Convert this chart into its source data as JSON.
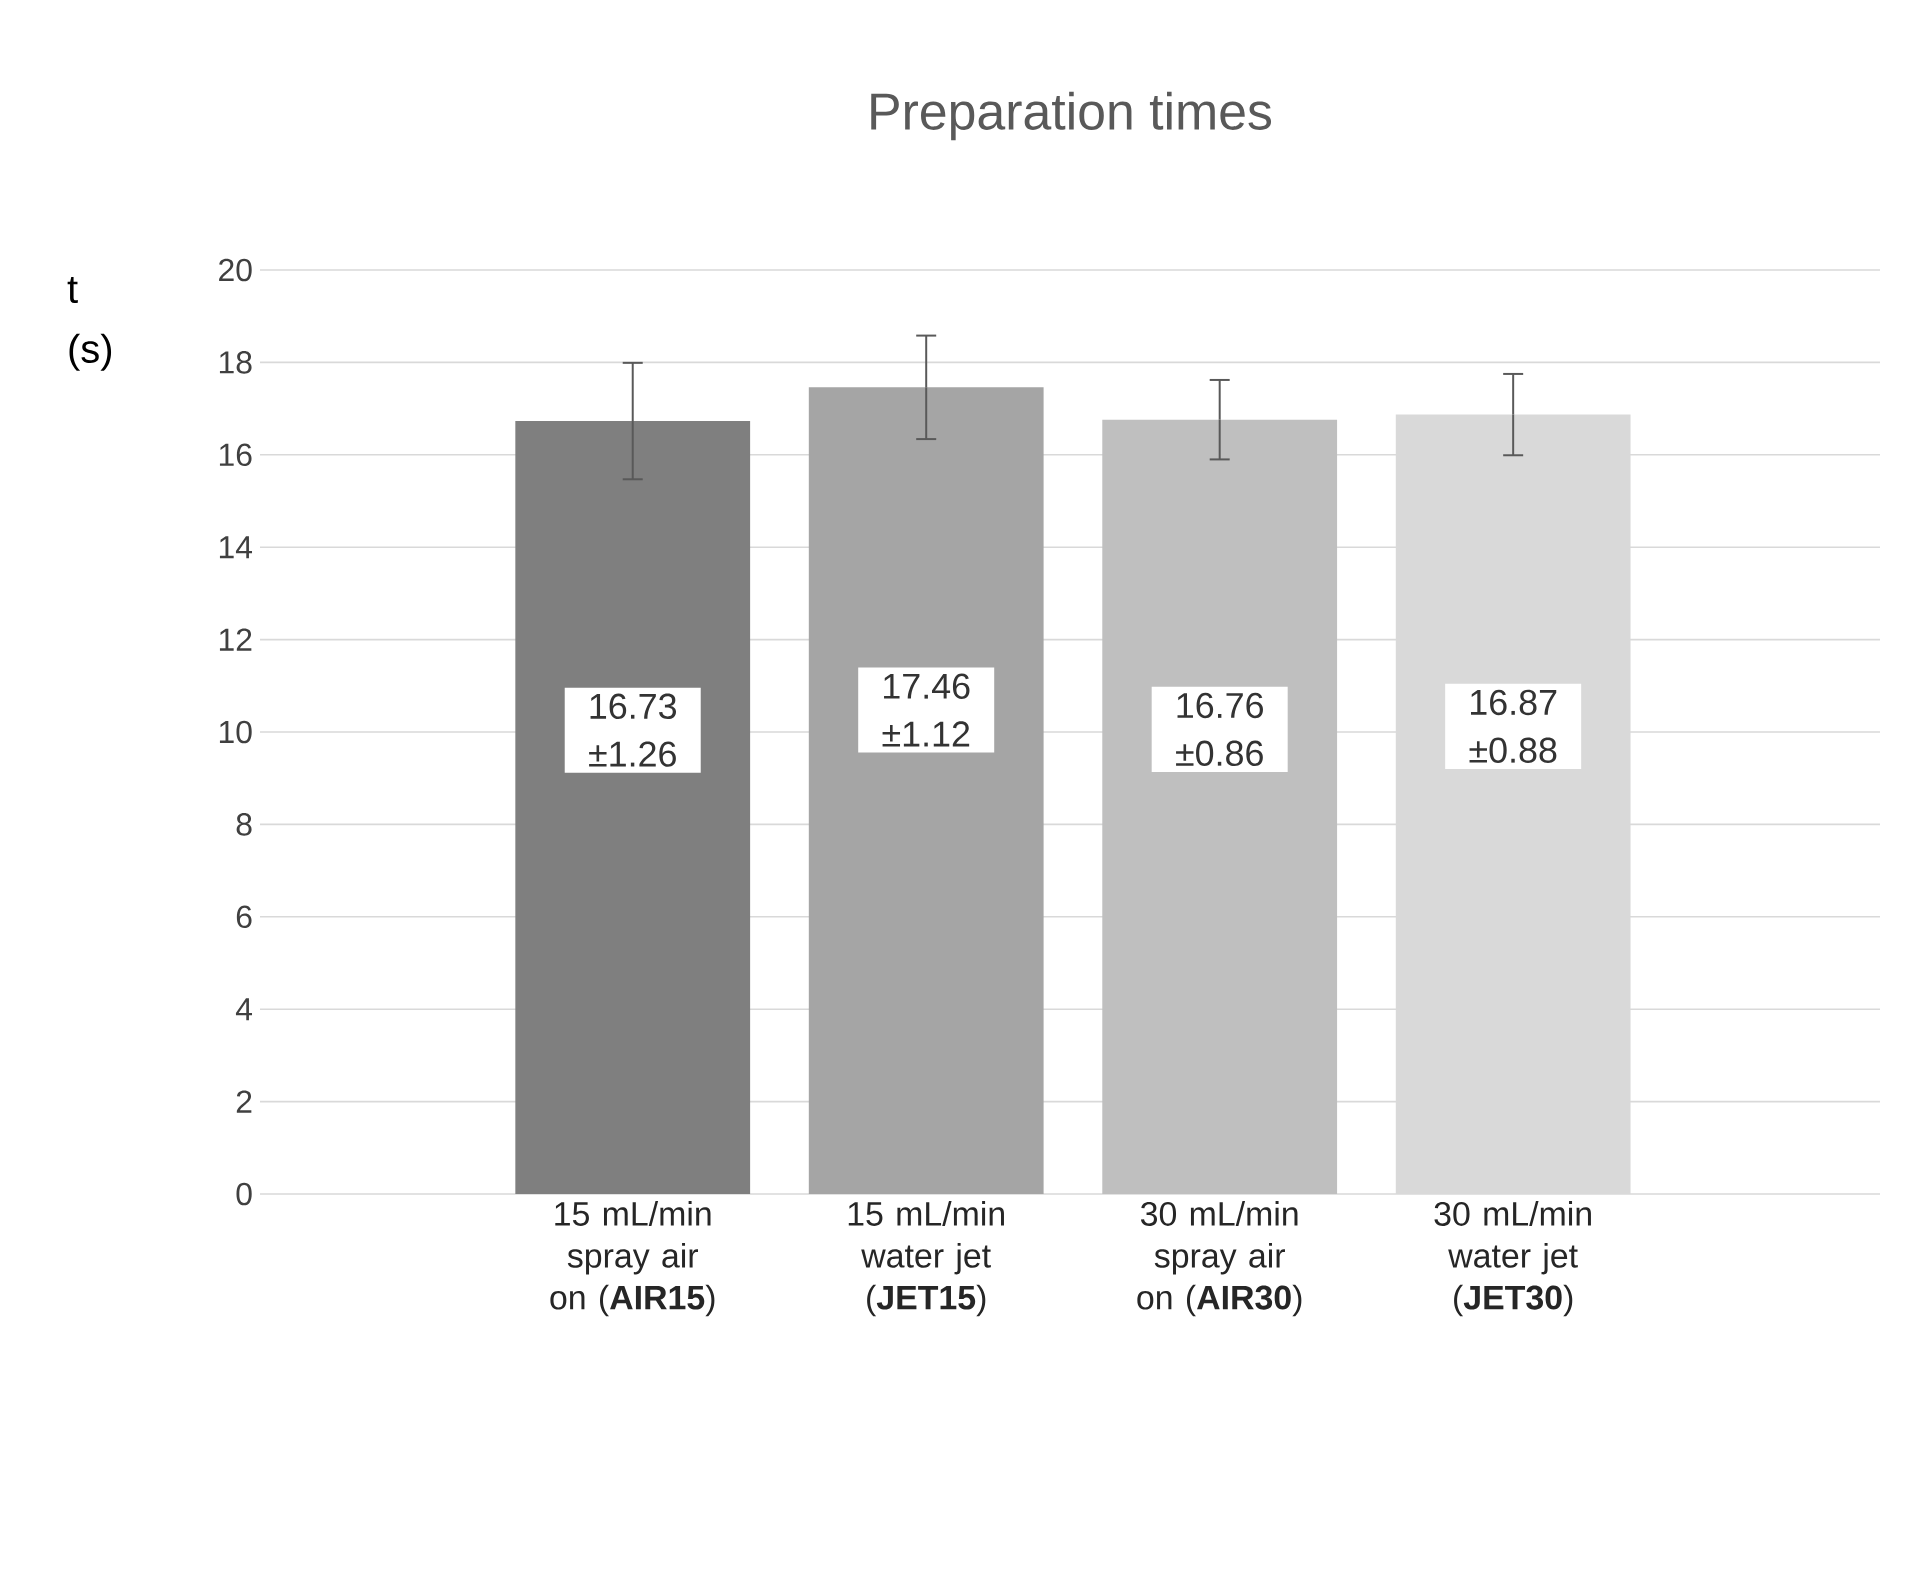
{
  "chart_data": {
    "type": "bar",
    "title": "Preparation times",
    "ylabel": "t (s)",
    "categories": [
      "15 mL/min spray air on (**AIR15**)",
      "15 mL/min water jet (**JET15**)",
      "30 mL/min spray air on (**AIR30**)",
      "30 mL/min water jet (**JET30**)"
    ],
    "values": [
      16.73,
      17.46,
      16.76,
      16.87
    ],
    "errors": [
      1.26,
      1.12,
      0.86,
      0.88
    ],
    "value_labels": [
      "16.73 ±1.26",
      "17.46 ±1.12",
      "16.76 ±0.86",
      "16.87 ±0.88"
    ],
    "colors": [
      "#7f7f7f",
      "#a5a5a5",
      "#bfbfbf",
      "#d9d9d9"
    ],
    "ylim": [
      0,
      20
    ],
    "yticks": [
      0,
      2,
      4,
      6,
      8,
      10,
      12,
      14,
      16,
      18,
      20
    ],
    "grid": "y"
  }
}
